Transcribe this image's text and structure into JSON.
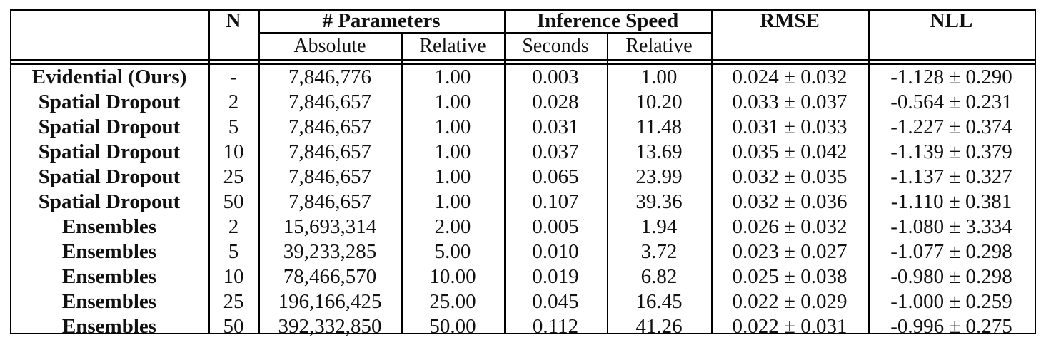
{
  "table": {
    "headers": {
      "n": "N",
      "parameters": "# Parameters",
      "inference": "Inference Speed",
      "rmse": "RMSE",
      "nll": "NLL"
    },
    "subheaders": {
      "absolute": "Absolute",
      "relative_params": "Relative",
      "seconds": "Seconds",
      "relative_speed": "Relative"
    },
    "rows": [
      {
        "method": "Evidential (Ours)",
        "n": "-",
        "abs": "7,846,776",
        "rel": "1.00",
        "sec": "0.003",
        "rel_speed": "1.00",
        "rmse": "0.024 ± 0.032",
        "nll": "-1.128 ± 0.290"
      },
      {
        "method": "Spatial Dropout",
        "n": "2",
        "abs": "7,846,657",
        "rel": "1.00",
        "sec": "0.028",
        "rel_speed": "10.20",
        "rmse": "0.033 ± 0.037",
        "nll": "-0.564 ± 0.231"
      },
      {
        "method": "Spatial Dropout",
        "n": "5",
        "abs": "7,846,657",
        "rel": "1.00",
        "sec": "0.031",
        "rel_speed": "11.48",
        "rmse": "0.031 ± 0.033",
        "nll": "-1.227 ± 0.374"
      },
      {
        "method": "Spatial Dropout",
        "n": "10",
        "abs": "7,846,657",
        "rel": "1.00",
        "sec": "0.037",
        "rel_speed": "13.69",
        "rmse": "0.035 ± 0.042",
        "nll": "-1.139 ± 0.379"
      },
      {
        "method": "Spatial Dropout",
        "n": "25",
        "abs": "7,846,657",
        "rel": "1.00",
        "sec": "0.065",
        "rel_speed": "23.99",
        "rmse": "0.032 ± 0.035",
        "nll": "-1.137 ± 0.327"
      },
      {
        "method": "Spatial Dropout",
        "n": "50",
        "abs": "7,846,657",
        "rel": "1.00",
        "sec": "0.107",
        "rel_speed": "39.36",
        "rmse": "0.032 ± 0.036",
        "nll": "-1.110 ± 0.381"
      },
      {
        "method": "Ensembles",
        "n": "2",
        "abs": "15,693,314",
        "rel": "2.00",
        "sec": "0.005",
        "rel_speed": "1.94",
        "rmse": "0.026 ± 0.032",
        "nll": "-1.080 ± 3.334"
      },
      {
        "method": "Ensembles",
        "n": "5",
        "abs": "39,233,285",
        "rel": "5.00",
        "sec": "0.010",
        "rel_speed": "3.72",
        "rmse": "0.023 ± 0.027",
        "nll": "-1.077 ± 0.298"
      },
      {
        "method": "Ensembles",
        "n": "10",
        "abs": "78,466,570",
        "rel": "10.00",
        "sec": "0.019",
        "rel_speed": "6.82",
        "rmse": "0.025 ± 0.038",
        "nll": "-0.980 ± 0.298"
      },
      {
        "method": "Ensembles",
        "n": "25",
        "abs": "196,166,425",
        "rel": "25.00",
        "sec": "0.045",
        "rel_speed": "16.45",
        "rmse": "0.022 ± 0.029",
        "nll": "-1.000 ± 0.259"
      },
      {
        "method": "Ensembles",
        "n": "50",
        "abs": "392,332,850",
        "rel": "50.00",
        "sec": "0.112",
        "rel_speed": "41.26",
        "rmse": "0.022 ± 0.031",
        "nll": "-0.996 ± 0.275"
      }
    ]
  }
}
